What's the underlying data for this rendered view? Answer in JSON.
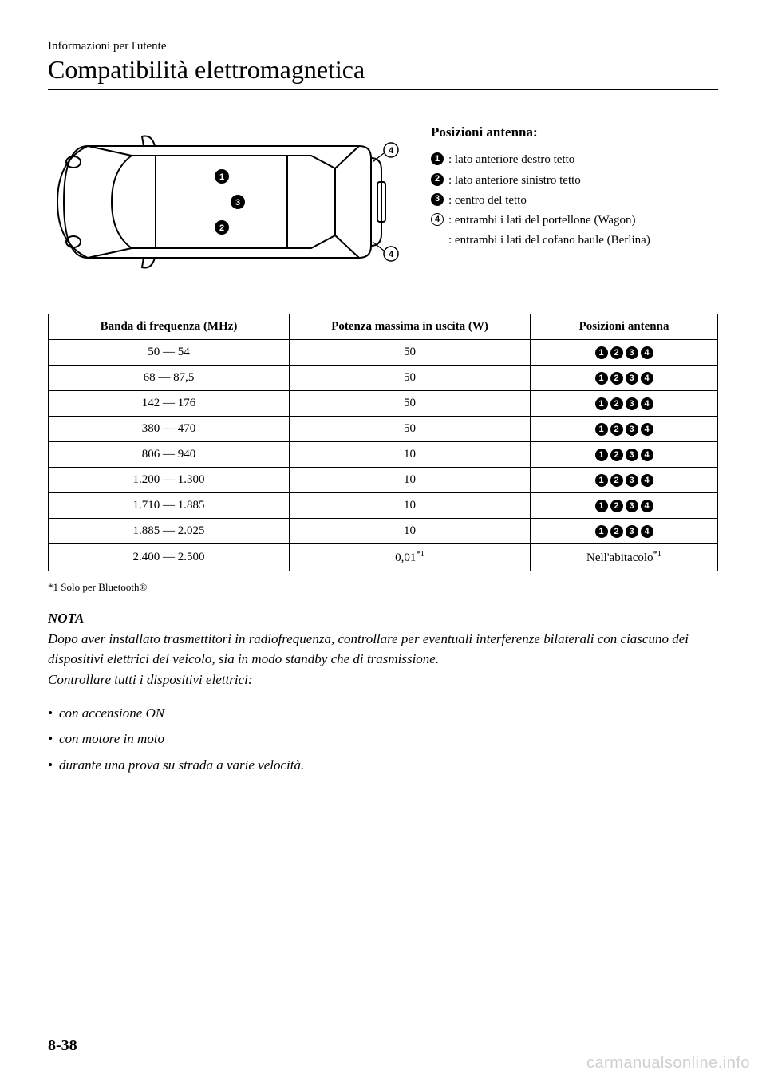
{
  "header": {
    "section": "Informazioni per l'utente",
    "title": "Compatibilità elettromagnetica"
  },
  "legend": {
    "title": "Posizioni antenna:",
    "items": [
      {
        "num": "1",
        "text": ": lato anteriore destro tetto"
      },
      {
        "num": "2",
        "text": ": lato anteriore sinistro tetto"
      },
      {
        "num": "3",
        "text": ": centro del tetto"
      },
      {
        "num": "4",
        "text": ": entrambi i lati del portellone (Wagon)"
      }
    ],
    "extra": ": entrambi i lati del cofano baule (Berlina)"
  },
  "diagram": {
    "badges": [
      "1",
      "2",
      "3",
      "4"
    ]
  },
  "table": {
    "headers": {
      "band": "Banda di frequenza (MHz)",
      "power": "Potenza massima in uscita (W)",
      "pos": "Posizioni antenna"
    },
    "rows": [
      {
        "band": "50 — 54",
        "power": "50",
        "pos_badges": [
          "1",
          "2",
          "3",
          "4"
        ]
      },
      {
        "band": "68 — 87,5",
        "power": "50",
        "pos_badges": [
          "1",
          "2",
          "3",
          "4"
        ]
      },
      {
        "band": "142 — 176",
        "power": "50",
        "pos_badges": [
          "1",
          "2",
          "3",
          "4"
        ]
      },
      {
        "band": "380 — 470",
        "power": "50",
        "pos_badges": [
          "1",
          "2",
          "3",
          "4"
        ]
      },
      {
        "band": "806 — 940",
        "power": "10",
        "pos_badges": [
          "1",
          "2",
          "3",
          "4"
        ]
      },
      {
        "band": "1.200 — 1.300",
        "power": "10",
        "pos_badges": [
          "1",
          "2",
          "3",
          "4"
        ]
      },
      {
        "band": "1.710 — 1.885",
        "power": "10",
        "pos_badges": [
          "1",
          "2",
          "3",
          "4"
        ]
      },
      {
        "band": "1.885 — 2.025",
        "power": "10",
        "pos_badges": [
          "1",
          "2",
          "3",
          "4"
        ]
      },
      {
        "band": "2.400 — 2.500",
        "power": "0,01*1",
        "pos_text": "Nell'abitacolo*1"
      }
    ]
  },
  "footnote": "*1   Solo per Bluetooth®",
  "nota": {
    "title": "NOTA",
    "para1": "Dopo aver installato trasmettitori in radiofrequenza, controllare per eventuali interferenze bilaterali con ciascuno dei dispositivi elettrici del veicolo, sia in modo standby che di trasmissione.",
    "para2": "Controllare tutti i dispositivi elettrici:",
    "list": [
      "con accensione ON",
      "con motore in moto",
      "durante una prova su strada a varie velocità."
    ]
  },
  "page_number": "8-38",
  "watermark": "carmanualsonline.info",
  "colors": {
    "text": "#000000",
    "background": "#ffffff",
    "watermark": "#cfcfcf",
    "rule": "#000000"
  }
}
